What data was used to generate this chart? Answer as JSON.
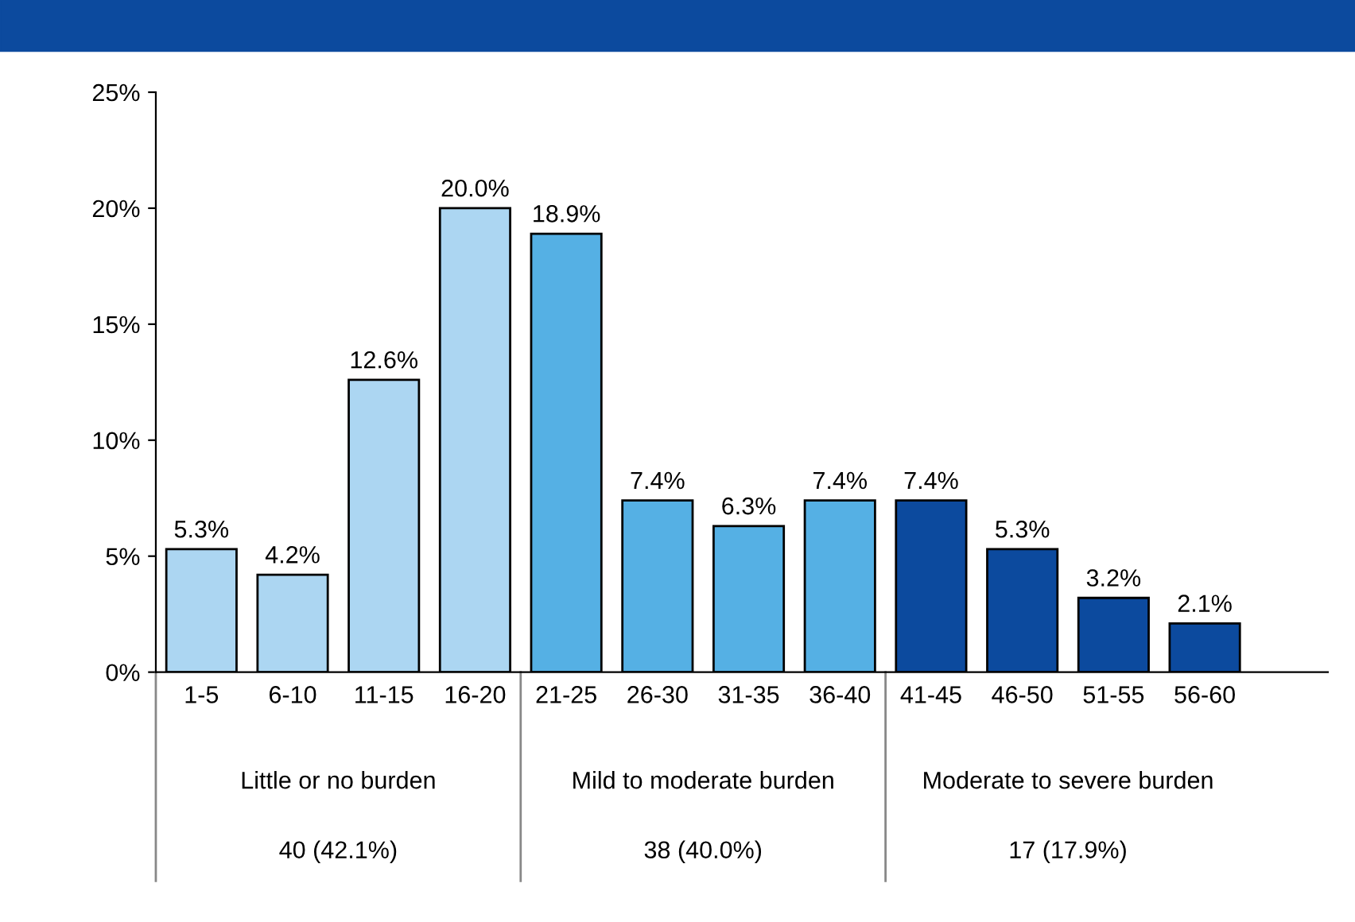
{
  "chart_data": {
    "type": "bar",
    "categories": [
      "1-5",
      "6-10",
      "11-15",
      "16-20",
      "21-25",
      "26-30",
      "31-35",
      "36-40",
      "41-45",
      "46-50",
      "51-55",
      "56-60"
    ],
    "values": [
      5.3,
      4.2,
      12.6,
      20.0,
      18.9,
      7.4,
      6.3,
      7.4,
      7.4,
      5.3,
      3.2,
      2.1
    ],
    "colors": [
      "#acd6f2",
      "#acd6f2",
      "#acd6f2",
      "#acd6f2",
      "#55b0e4",
      "#55b0e4",
      "#55b0e4",
      "#55b0e4",
      "#0c4a9e",
      "#0c4a9e",
      "#0c4a9e",
      "#0c4a9e"
    ],
    "value_labels": [
      "5.3%",
      "4.2%",
      "12.6%",
      "20.0%",
      "18.9%",
      "7.4%",
      "6.3%",
      "7.4%",
      "7.4%",
      "5.3%",
      "3.2%",
      "2.1%"
    ],
    "ylim": [
      0,
      25
    ],
    "yticks": [
      {
        "value": 0,
        "label": "0%"
      },
      {
        "value": 5,
        "label": "5%"
      },
      {
        "value": 10,
        "label": "10%"
      },
      {
        "value": 15,
        "label": "15%"
      },
      {
        "value": 20,
        "label": "20%"
      },
      {
        "value": 25,
        "label": "25%"
      }
    ],
    "annotations": [
      "Little or no burden",
      "40 (42.1%)",
      "Mild to moderate burden",
      "38 (40.0%)",
      "Moderate to severe burden",
      "17 (17.9%)"
    ],
    "grid": false,
    "legend": false
  }
}
